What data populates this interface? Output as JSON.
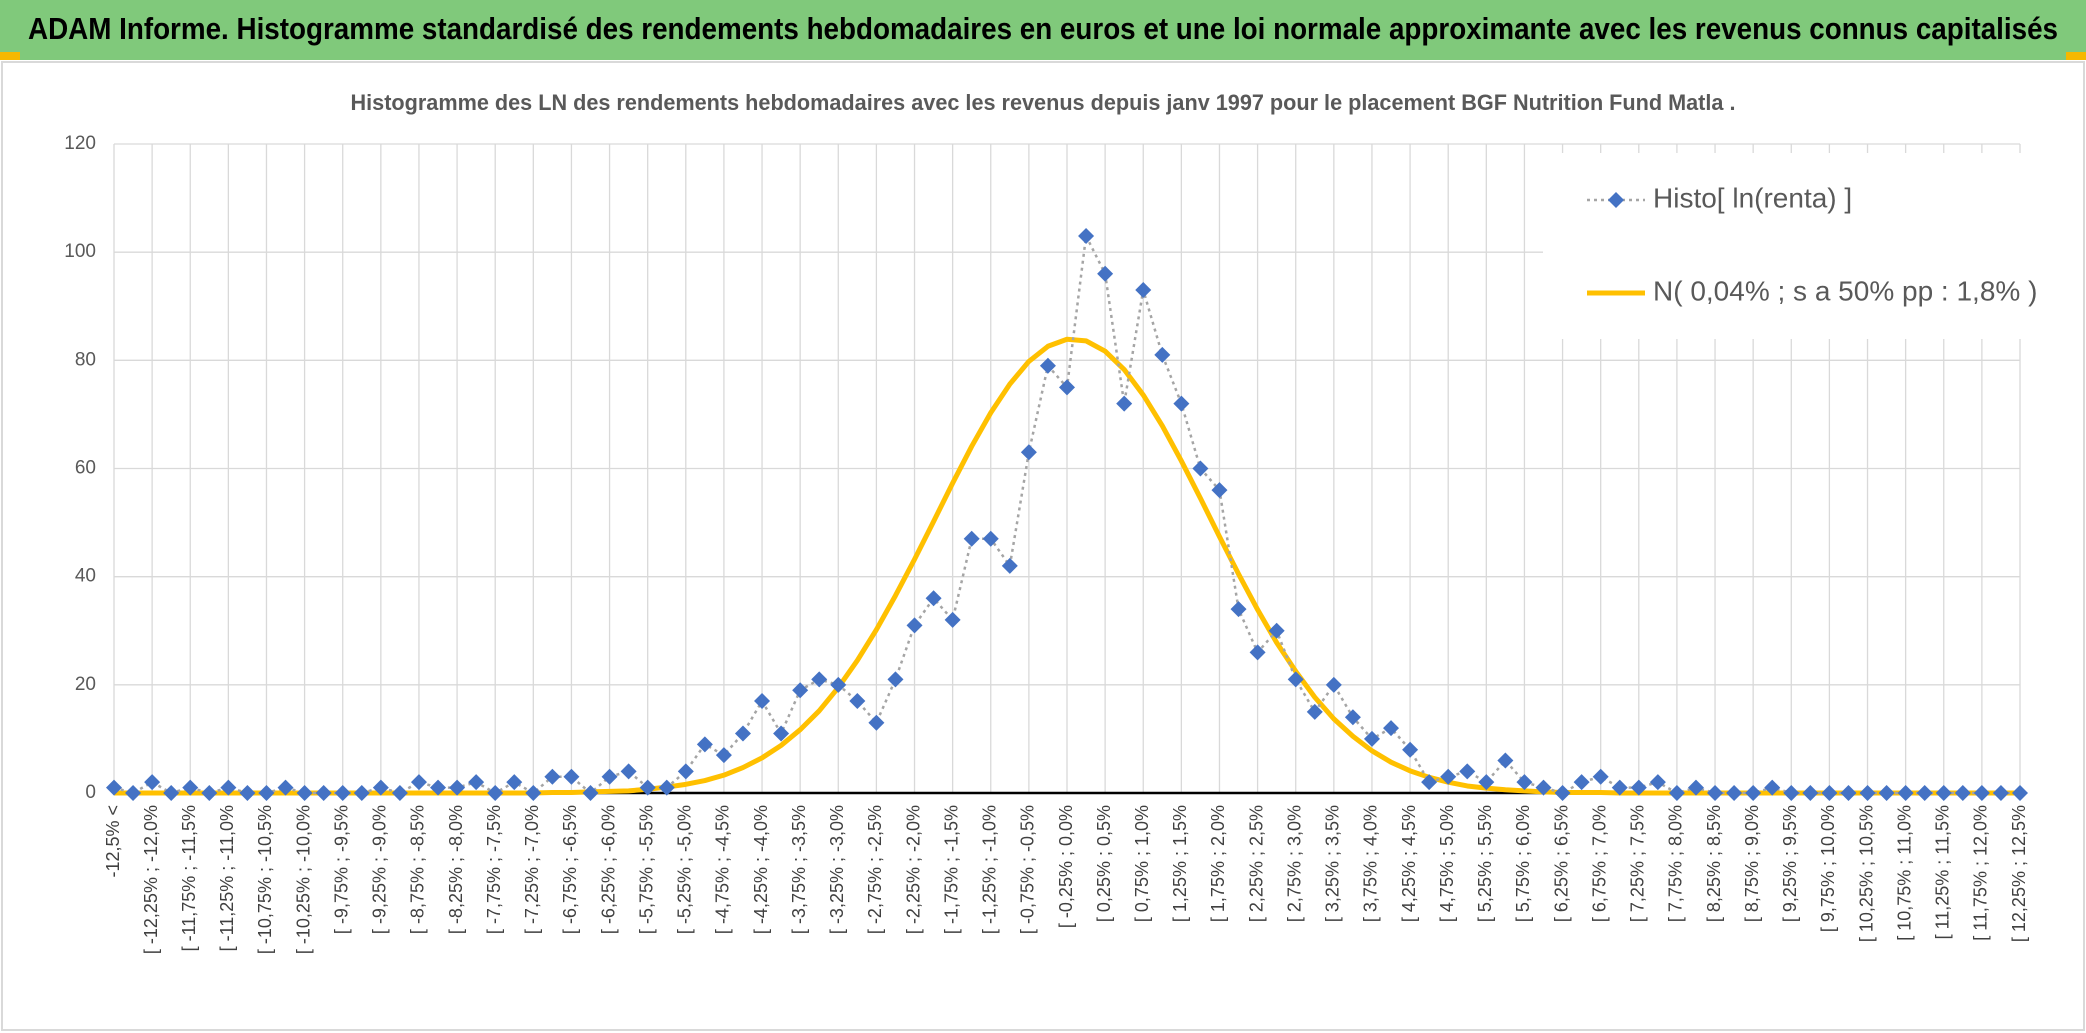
{
  "chart_data": {
    "type": "line",
    "header": "ADAM Informe. Histogramme standardisé des rendements hebdomadaires en euros et une loi normale approximante avec les revenus connus capitalisés",
    "title": "Histogramme des LN des rendements hebdomadaires avec les revenus depuis janv 1997 pour le placement BGF Nutrition Fund Matla .",
    "categories": [
      "-12,5% <",
      null,
      "[ -12,25% ; -12,0%",
      null,
      "[ -11,75% ; -11,5%",
      null,
      "[ -11,25% ; -11,0%",
      null,
      "[ -10,75% ; -10,5%",
      null,
      "[ -10,25% ; -10,0%",
      null,
      "[ -9,75% ; -9,5%",
      null,
      "[ -9,25% ; -9,0%",
      null,
      "[ -8,75% ; -8,5%",
      null,
      "[ -8,25% ; -8,0%",
      null,
      "[ -7,75% ; -7,5%",
      null,
      "[ -7,25% ; -7,0%",
      null,
      "[ -6,75% ; -6,5%",
      null,
      "[ -6,25% ; -6,0%",
      null,
      "[ -5,75% ; -5,5%",
      null,
      "[ -5,25% ; -5,0%",
      null,
      "[ -4,75% ; -4,5%",
      null,
      "[ -4,25% ; -4,0%",
      null,
      "[ -3,75% ; -3,5%",
      null,
      "[ -3,25% ; -3,0%",
      null,
      "[ -2,75% ; -2,5%",
      null,
      "[ -2,25% ; -2,0%",
      null,
      "[ -1,75% ; -1,5%",
      null,
      "[ -1,25% ; -1,0%",
      null,
      "[ -0,75% ; -0,5%",
      null,
      "[ -0,25% ; 0,0%",
      null,
      "[ 0,25% ; 0,5%",
      null,
      "[ 0,75% ; 1,0%",
      null,
      "[ 1,25% ; 1,5%",
      null,
      "[ 1,75% ; 2,0%",
      null,
      "[ 2,25% ; 2,5%",
      null,
      "[ 2,75% ; 3,0%",
      null,
      "[ 3,25% ; 3,5%",
      null,
      "[ 3,75% ; 4,0%",
      null,
      "[ 4,25% ; 4,5%",
      null,
      "[ 4,75% ; 5,0%",
      null,
      "[ 5,25% ; 5,5%",
      null,
      "[ 5,75% ; 6,0%",
      null,
      "[ 6,25% ; 6,5%",
      null,
      "[ 6,75% ; 7,0%",
      null,
      "[ 7,25% ; 7,5%",
      null,
      "[ 7,75% ; 8,0%",
      null,
      "[ 8,25% ; 8,5%",
      null,
      "[ 8,75% ; 9,0%",
      null,
      "[ 9,25% ; 9,5%",
      null,
      "[ 9,75% ; 10,0%",
      null,
      "[ 10,25% ; 10,5%",
      null,
      "[ 10,75% ; 11,0%",
      null,
      "[ 11,25% ; 11,5%",
      null,
      "[ 11,75% ; 12,0%",
      null,
      "[ 12,25% ; 12,5%"
    ],
    "series": [
      {
        "name": "Histo[ ln(renta) ]",
        "color": "#a5a5a5",
        "marker": "diamond",
        "marker_color": "#4472c4",
        "line_style": "dotted",
        "values": [
          1,
          0,
          2,
          0,
          1,
          0,
          1,
          0,
          0,
          1,
          0,
          0,
          0,
          0,
          1,
          0,
          2,
          1,
          1,
          2,
          0,
          2,
          0,
          3,
          3,
          0,
          3,
          4,
          1,
          1,
          4,
          9,
          7,
          11,
          17,
          11,
          19,
          21,
          20,
          17,
          13,
          21,
          31,
          36,
          32,
          47,
          47,
          42,
          63,
          79,
          75,
          103,
          96,
          72,
          93,
          81,
          72,
          60,
          56,
          34,
          26,
          30,
          21,
          15,
          20,
          14,
          10,
          12,
          8,
          2,
          3,
          4,
          2,
          6,
          2,
          1,
          0,
          2,
          3,
          1,
          1,
          2,
          0,
          1,
          0,
          0,
          0,
          1,
          0,
          0,
          0,
          0,
          0,
          0,
          0,
          0,
          0,
          0,
          0,
          0,
          0
        ]
      },
      {
        "name": "N( 0,04% ; s a 50% pp : 1,8% )",
        "color": "#ffc000",
        "marker": "none",
        "line_style": "solid",
        "values": [
          0,
          0,
          0,
          0,
          0,
          0,
          0,
          0,
          0,
          0,
          0,
          0,
          0,
          0,
          0,
          0,
          0,
          0,
          0,
          0,
          0,
          0,
          0,
          0.1,
          0.1,
          0.2,
          0.3,
          0.4,
          0.7,
          1.1,
          1.6,
          2.3,
          3.3,
          4.7,
          6.5,
          8.8,
          11.7,
          15.2,
          19.5,
          24.5,
          30.2,
          36.5,
          43.2,
          50.2,
          57.3,
          64.1,
          70.3,
          75.6,
          79.8,
          82.6,
          83.9,
          83.6,
          81.7,
          78.3,
          73.6,
          67.9,
          61.4,
          54.5,
          47.4,
          40.5,
          33.9,
          27.8,
          22.5,
          17.7,
          13.7,
          10.5,
          7.8,
          5.7,
          4.1,
          2.9,
          2.0,
          1.3,
          0.9,
          0.6,
          0.4,
          0.2,
          0.1,
          0.1,
          0.1,
          0,
          0,
          0,
          0,
          0,
          0,
          0,
          0,
          0,
          0,
          0,
          0,
          0,
          0,
          0,
          0,
          0,
          0,
          0,
          0,
          0,
          0
        ]
      }
    ],
    "ylim": [
      0,
      120
    ],
    "yticks": [
      0,
      20,
      40,
      60,
      80,
      100,
      120
    ],
    "grid": true,
    "legend": "upper right"
  }
}
